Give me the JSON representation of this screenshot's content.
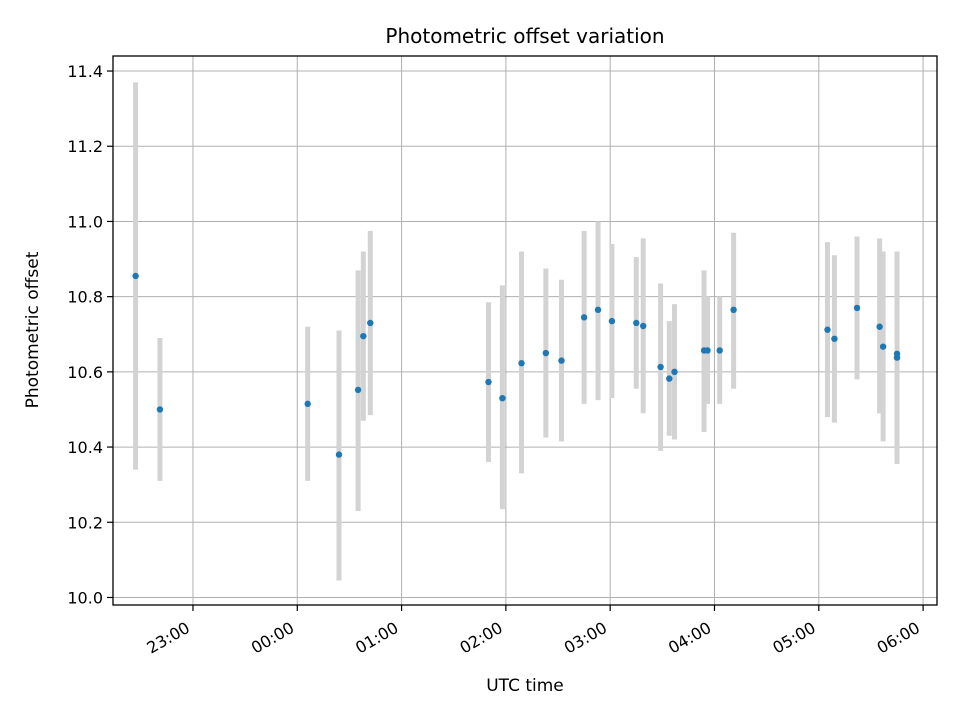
{
  "chart_data": {
    "type": "scatter",
    "title": "Photometric offset variation",
    "xlabel": "UTC time",
    "ylabel": "Photometric offset",
    "x_unit": "hours",
    "xlim": [
      "22:14",
      "06:08"
    ],
    "ylim": [
      9.98,
      11.44
    ],
    "x_ticks": [
      "23:00",
      "00:00",
      "01:00",
      "02:00",
      "03:00",
      "04:00",
      "05:00",
      "06:00"
    ],
    "y_ticks": [
      "10.0",
      "10.2",
      "10.4",
      "10.6",
      "10.8",
      "11.0",
      "11.2",
      "11.4"
    ],
    "grid": true,
    "marker_color": "#1f77b4",
    "errorbar_color": "#d3d3d3",
    "points": [
      {
        "t": "22:27",
        "y": 10.855,
        "lo": 10.34,
        "hi": 11.37
      },
      {
        "t": "22:41",
        "y": 10.5,
        "lo": 10.31,
        "hi": 10.69
      },
      {
        "t": "00:06",
        "y": 10.515,
        "lo": 10.31,
        "hi": 10.72
      },
      {
        "t": "00:24",
        "y": 10.38,
        "lo": 10.045,
        "hi": 10.71
      },
      {
        "t": "00:35",
        "y": 10.552,
        "lo": 10.23,
        "hi": 10.87
      },
      {
        "t": "00:38",
        "y": 10.695,
        "lo": 10.47,
        "hi": 10.92
      },
      {
        "t": "00:42",
        "y": 10.73,
        "lo": 10.485,
        "hi": 10.975
      },
      {
        "t": "01:50",
        "y": 10.573,
        "lo": 10.36,
        "hi": 10.785
      },
      {
        "t": "01:58",
        "y": 10.53,
        "lo": 10.235,
        "hi": 10.83
      },
      {
        "t": "02:09",
        "y": 10.623,
        "lo": 10.33,
        "hi": 10.92
      },
      {
        "t": "02:23",
        "y": 10.65,
        "lo": 10.425,
        "hi": 10.875
      },
      {
        "t": "02:32",
        "y": 10.63,
        "lo": 10.415,
        "hi": 10.845
      },
      {
        "t": "02:45",
        "y": 10.745,
        "lo": 10.515,
        "hi": 10.975
      },
      {
        "t": "02:53",
        "y": 10.765,
        "lo": 10.525,
        "hi": 11.0
      },
      {
        "t": "03:01",
        "y": 10.735,
        "lo": 10.53,
        "hi": 10.94
      },
      {
        "t": "03:15",
        "y": 10.73,
        "lo": 10.555,
        "hi": 10.905
      },
      {
        "t": "03:19",
        "y": 10.722,
        "lo": 10.49,
        "hi": 10.955
      },
      {
        "t": "03:29",
        "y": 10.613,
        "lo": 10.39,
        "hi": 10.835
      },
      {
        "t": "03:34",
        "y": 10.582,
        "lo": 10.43,
        "hi": 10.735
      },
      {
        "t": "03:37",
        "y": 10.6,
        "lo": 10.42,
        "hi": 10.78
      },
      {
        "t": "03:54",
        "y": 10.657,
        "lo": 10.44,
        "hi": 10.87
      },
      {
        "t": "03:56",
        "y": 10.657,
        "lo": 10.515,
        "hi": 10.8
      },
      {
        "t": "04:03",
        "y": 10.657,
        "lo": 10.515,
        "hi": 10.8
      },
      {
        "t": "04:11",
        "y": 10.765,
        "lo": 10.555,
        "hi": 10.97
      },
      {
        "t": "05:05",
        "y": 10.712,
        "lo": 10.48,
        "hi": 10.945
      },
      {
        "t": "05:09",
        "y": 10.688,
        "lo": 10.465,
        "hi": 10.91
      },
      {
        "t": "05:22",
        "y": 10.77,
        "lo": 10.58,
        "hi": 10.96
      },
      {
        "t": "05:35",
        "y": 10.72,
        "lo": 10.49,
        "hi": 10.955
      },
      {
        "t": "05:37",
        "y": 10.667,
        "lo": 10.415,
        "hi": 10.92
      },
      {
        "t": "05:45",
        "y": 10.648,
        "lo": 10.37,
        "hi": 10.92
      },
      {
        "t": "05:45",
        "y": 10.638,
        "lo": 10.355,
        "hi": 10.92
      }
    ]
  }
}
